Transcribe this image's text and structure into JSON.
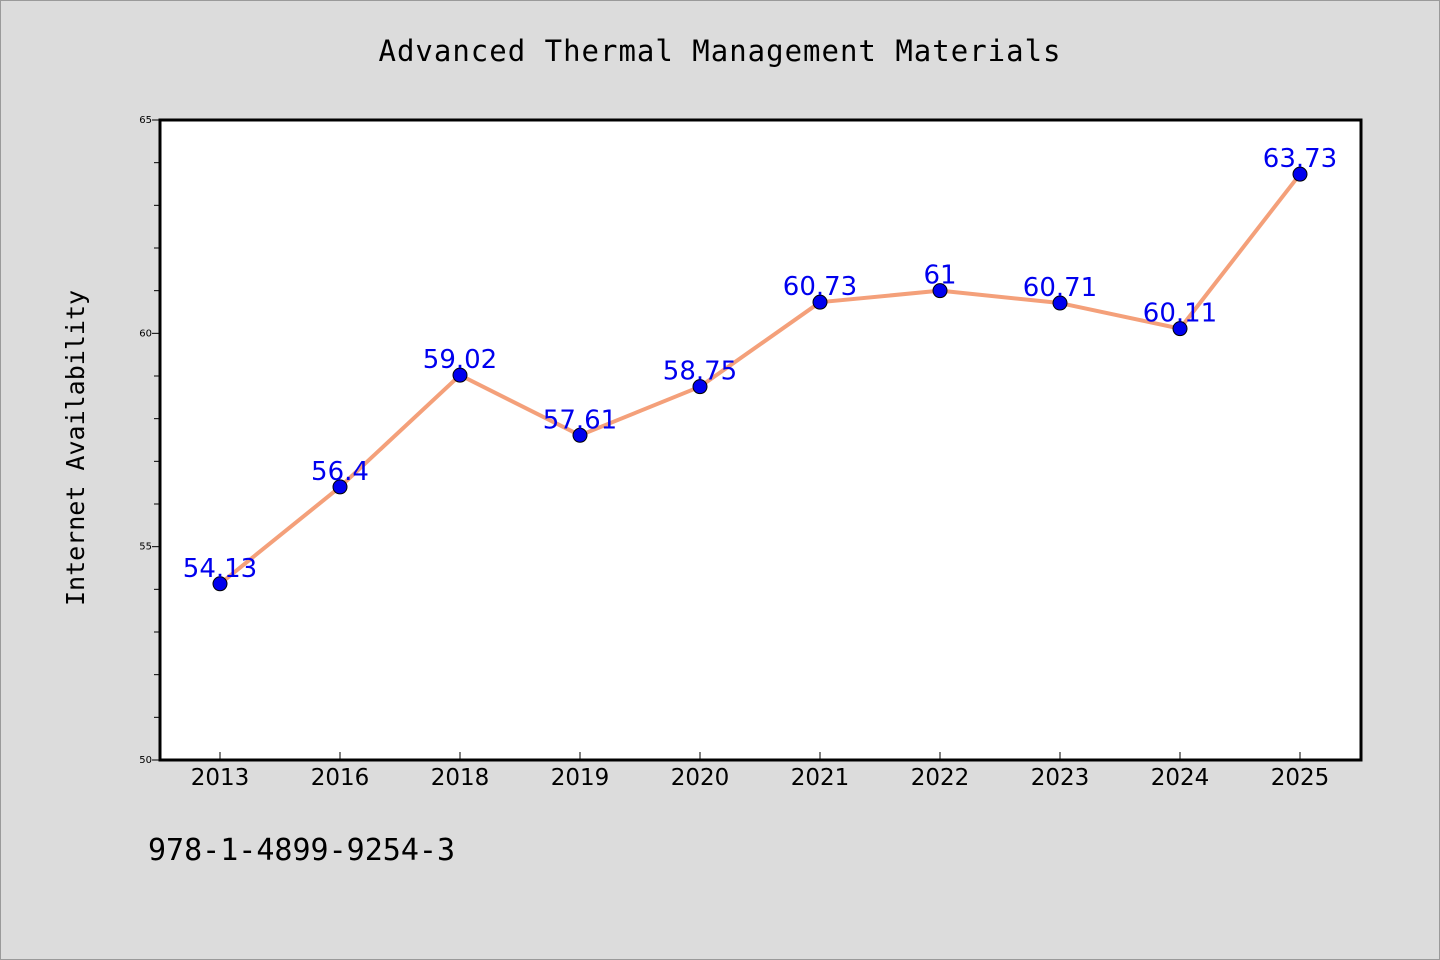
{
  "chart_data": {
    "type": "line",
    "title": "Advanced Thermal Management Materials",
    "ylabel": "Internet Availability",
    "xlabel": "",
    "categories": [
      "2013",
      "2016",
      "2018",
      "2019",
      "2020",
      "2021",
      "2022",
      "2023",
      "2024",
      "2025"
    ],
    "series": [
      {
        "values": [
          54.13,
          56.4,
          59.02,
          57.61,
          58.75,
          60.73,
          61,
          60.71,
          60.11,
          63.73
        ],
        "data_labels": [
          "54.13",
          "56.4",
          "59.02",
          "57.61",
          "58.75",
          "60.73",
          "61",
          "60.71",
          "60.11",
          "63.73"
        ],
        "line_color": "#f4a07a",
        "marker_color": "#0000ee"
      }
    ],
    "ylim": [
      50,
      65
    ],
    "y_major_ticks": [
      50,
      55,
      60,
      65
    ],
    "y_major_tick_labels": [
      "50",
      "55",
      "60",
      "65"
    ],
    "y_minor_step": 1,
    "grid": false,
    "legend": "none"
  },
  "footer": {
    "code": "978-1-4899-9254-3"
  }
}
